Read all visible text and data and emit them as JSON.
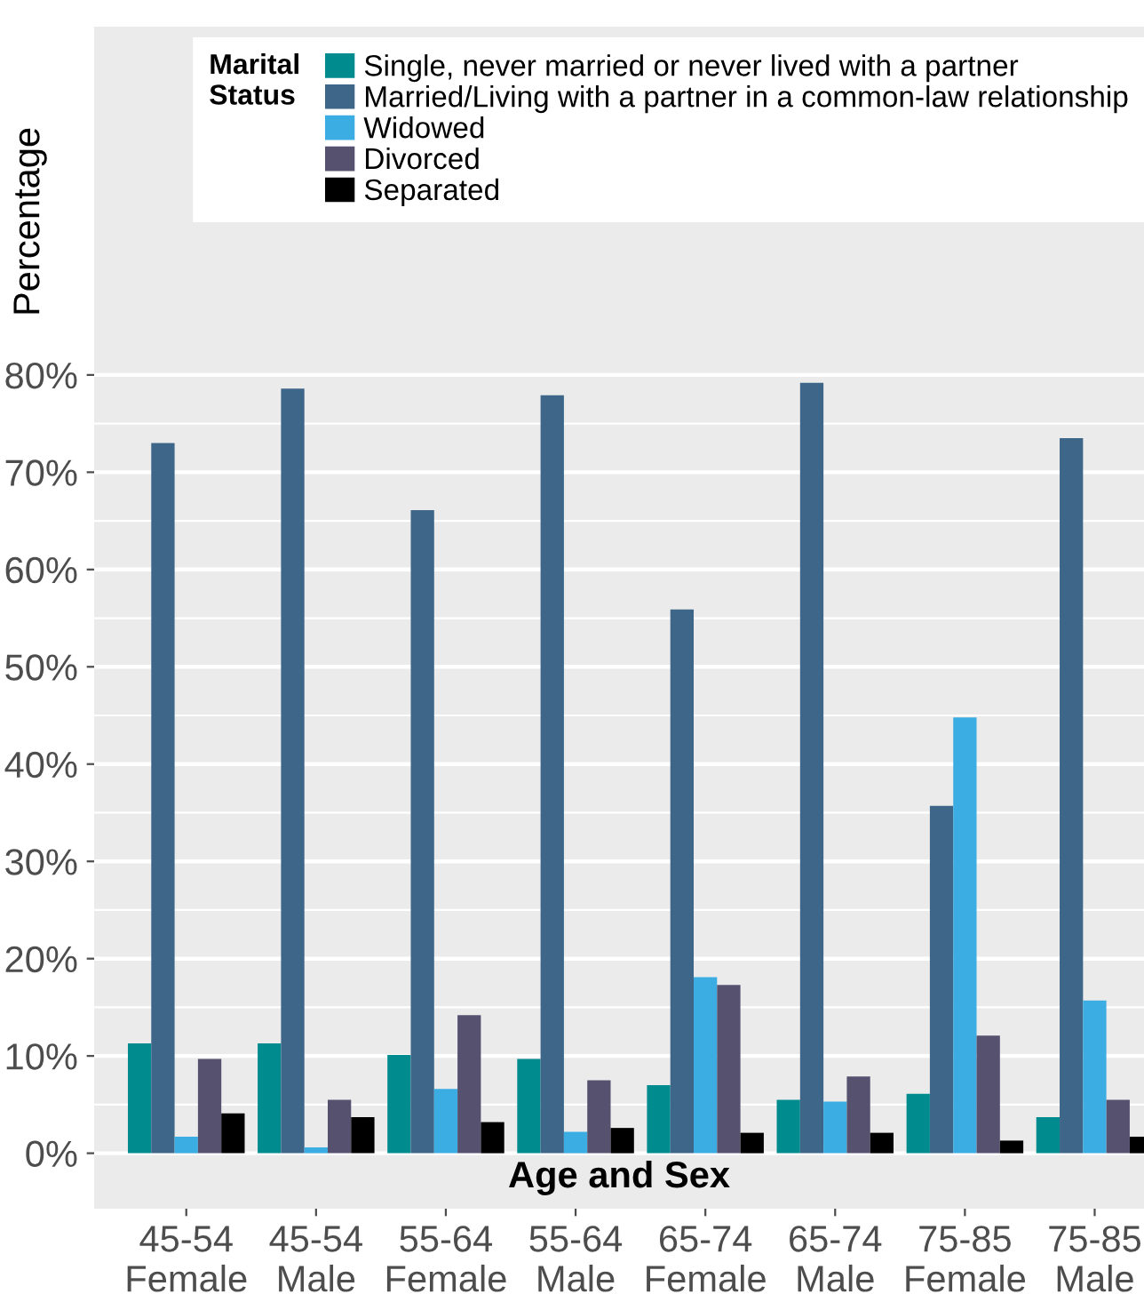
{
  "chart_data": {
    "type": "bar",
    "ylabel": "Percentage",
    "xlabel": "Age and Sex",
    "legend_title": "Marital\nStatus",
    "categories": [
      "45-54\nFemale",
      "45-54\nMale",
      "55-64\nFemale",
      "55-64\nMale",
      "65-74\nFemale",
      "65-74\nMale",
      "75-85\nFemale",
      "75-85\nMale"
    ],
    "series": [
      {
        "name": "Single, never married or never lived with a partner",
        "color": "#008b8f",
        "values": [
          11.3,
          11.3,
          10.1,
          9.7,
          7.0,
          5.5,
          6.1,
          3.7
        ]
      },
      {
        "name": "Married/Living with a partner in a common-law relationship",
        "color": "#3e6689",
        "values": [
          73.0,
          78.6,
          66.1,
          77.9,
          55.9,
          79.2,
          35.7,
          73.5
        ]
      },
      {
        "name": "Widowed",
        "color": "#3cade2",
        "values": [
          1.7,
          0.6,
          6.6,
          2.2,
          18.1,
          5.3,
          44.8,
          15.7
        ]
      },
      {
        "name": "Divorced",
        "color": "#56516f",
        "values": [
          9.7,
          5.5,
          14.2,
          7.5,
          17.3,
          7.9,
          12.1,
          5.5
        ]
      },
      {
        "name": "Separated",
        "color": "#000000",
        "values": [
          4.1,
          3.7,
          3.2,
          2.6,
          2.1,
          2.1,
          1.3,
          1.7
        ]
      }
    ],
    "ylim": [
      -5.7,
      115.8
    ],
    "yticks": [
      {
        "value": 0,
        "label": "0%"
      },
      {
        "value": 5,
        "label": null
      },
      {
        "value": 10,
        "label": "10%"
      },
      {
        "value": 15,
        "label": null
      },
      {
        "value": 20,
        "label": "20%"
      },
      {
        "value": 25,
        "label": null
      },
      {
        "value": 30,
        "label": "30%"
      },
      {
        "value": 35,
        "label": null
      },
      {
        "value": 40,
        "label": "40%"
      },
      {
        "value": 45,
        "label": null
      },
      {
        "value": 50,
        "label": "50%"
      },
      {
        "value": 55,
        "label": null
      },
      {
        "value": 60,
        "label": "60%"
      },
      {
        "value": 65,
        "label": null
      },
      {
        "value": 70,
        "label": "70%"
      },
      {
        "value": 75,
        "label": null
      },
      {
        "value": 80,
        "label": "80%"
      }
    ],
    "grid": "y",
    "legend": "top"
  }
}
